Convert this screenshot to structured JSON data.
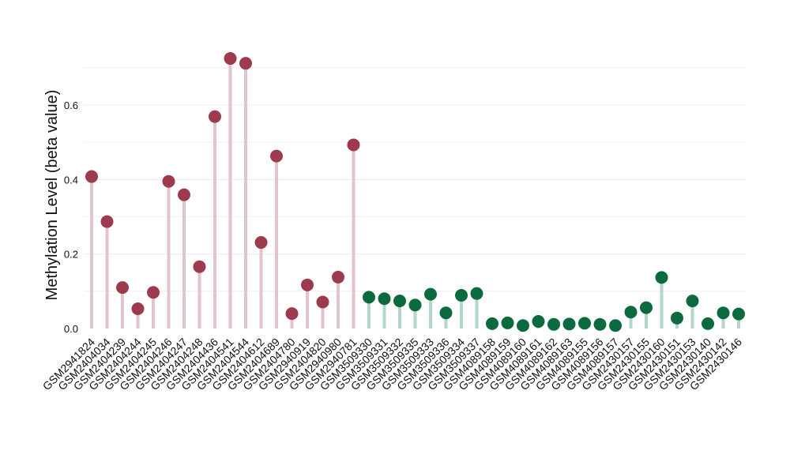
{
  "chart_data": {
    "type": "lollipop",
    "ylabel": "Methylation Level (beta value)",
    "ylim": [
      0,
      0.72
    ],
    "yticks": [
      "0.0",
      "0.2",
      "0.4",
      "0.6"
    ],
    "ytick_values": [
      0,
      0.2,
      0.4,
      0.6
    ],
    "grid": true,
    "colors": {
      "group1_point": "#9e3a4d",
      "group1_stem": "#e2c4cb",
      "group2_point": "#0b6b3f",
      "group2_stem": "#b3d6c6",
      "grid": "#ececec"
    },
    "categories": [
      "GSM2941824",
      "GSM2404034",
      "GSM2404239",
      "GSM2404244",
      "GSM2404245",
      "GSM2404246",
      "GSM2404247",
      "GSM2404248",
      "GSM2404436",
      "GSM2404541",
      "GSM2404544",
      "GSM2404612",
      "GSM2404689",
      "GSM2404780",
      "GSM2940919",
      "GSM2404820",
      "GSM2940980",
      "GSM2940781",
      "GSM3509330",
      "GSM3509331",
      "GSM3509332",
      "GSM3509335",
      "GSM3509333",
      "GSM3509336",
      "GSM3509334",
      "GSM3509337",
      "GSM4089158",
      "GSM4089159",
      "GSM4089160",
      "GSM4089161",
      "GSM4089162",
      "GSM4089163",
      "GSM4089155",
      "GSM4089156",
      "GSM4089157",
      "GSM2430157",
      "GSM2430155",
      "GSM2430160",
      "GSM2430151",
      "GSM2430153",
      "GSM2430140",
      "GSM2430142",
      "GSM2430146"
    ],
    "values": [
      0.408,
      0.287,
      0.11,
      0.053,
      0.097,
      0.395,
      0.359,
      0.166,
      0.569,
      0.725,
      0.712,
      0.231,
      0.463,
      0.04,
      0.117,
      0.071,
      0.138,
      0.493,
      0.084,
      0.08,
      0.074,
      0.063,
      0.092,
      0.042,
      0.089,
      0.094,
      0.013,
      0.015,
      0.008,
      0.019,
      0.011,
      0.012,
      0.014,
      0.011,
      0.008,
      0.044,
      0.056,
      0.137,
      0.028,
      0.074,
      0.013,
      0.042,
      0.039
    ],
    "groups": [
      1,
      1,
      1,
      1,
      1,
      1,
      1,
      1,
      1,
      1,
      1,
      1,
      1,
      1,
      1,
      1,
      1,
      1,
      2,
      2,
      2,
      2,
      2,
      2,
      2,
      2,
      2,
      2,
      2,
      2,
      2,
      2,
      2,
      2,
      2,
      2,
      2,
      2,
      2,
      2,
      2,
      2,
      2
    ]
  }
}
